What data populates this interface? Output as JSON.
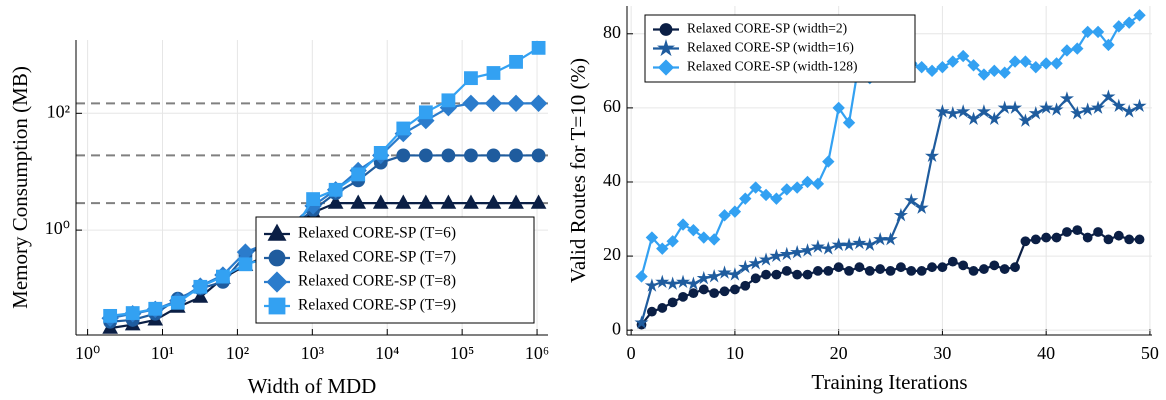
{
  "chart_data": [
    {
      "type": "line",
      "xlabel": "Width of MDD",
      "ylabel": "Memory Consumption (MB)",
      "xscale": "log",
      "yscale": "log",
      "grid": true,
      "legend": "lower right",
      "xlim": [
        0.7,
        1400000
      ],
      "ylim": [
        0.016,
        1800
      ],
      "xticks": [
        {
          "value": 1,
          "label": "10⁰"
        },
        {
          "value": 10,
          "label": "10¹"
        },
        {
          "value": 100,
          "label": "10²"
        },
        {
          "value": 1000,
          "label": "10³"
        },
        {
          "value": 10000,
          "label": "10⁴"
        },
        {
          "value": 100000,
          "label": "10⁵"
        },
        {
          "value": 1000000,
          "label": "10⁶"
        }
      ],
      "yticks": [
        {
          "value": 1,
          "label": "10⁰"
        },
        {
          "value": 100,
          "label": "10²"
        }
      ],
      "hlines": [
        148,
        19,
        2.9
      ],
      "hline_color": "#808080",
      "x": [
        2,
        4,
        8,
        16,
        32,
        64,
        128,
        256,
        512,
        1024,
        2048,
        4096,
        8192,
        16384,
        32768,
        65536,
        131072,
        262144,
        524288,
        1048576
      ],
      "series": [
        {
          "name": "Relaxed CORE-SP (T=6)",
          "color": "#0b1f45",
          "marker": "triangle",
          "values": [
            0.021,
            0.024,
            0.029,
            0.048,
            0.071,
            0.15,
            0.25,
            0.37,
            0.89,
            2.0,
            2.9,
            2.9,
            2.9,
            2.9,
            2.9,
            2.9,
            2.9,
            2.9,
            2.9,
            2.9
          ]
        },
        {
          "name": "Relaxed CORE-SP (T=7)",
          "color": "#1f5c9e",
          "marker": "circle",
          "values": [
            0.027,
            0.029,
            0.037,
            0.067,
            0.1,
            0.13,
            0.37,
            0.6,
            1.1,
            2.2,
            4.3,
            7.1,
            14.3,
            19,
            19,
            19,
            19,
            19,
            19,
            19
          ]
        },
        {
          "name": "Relaxed CORE-SP (T=8)",
          "color": "#2b7ccc",
          "marker": "diamond",
          "values": [
            0.031,
            0.037,
            0.044,
            0.062,
            0.11,
            0.17,
            0.42,
            0.6,
            1.2,
            2.6,
            4.9,
            10.5,
            19,
            45,
            75,
            125,
            148,
            148,
            148,
            148
          ]
        },
        {
          "name": "Relaxed CORE-SP (T=9)",
          "color": "#33a1f2",
          "marker": "square",
          "values": [
            0.034,
            0.038,
            0.045,
            0.057,
            0.107,
            0.16,
            0.26,
            0.33,
            0.82,
            3.4,
            4.9,
            9,
            21,
            55,
            104,
            167,
            400,
            490,
            760,
            1320
          ]
        }
      ]
    },
    {
      "type": "line",
      "xlabel": "Training Iterations",
      "ylabel": "Valid Routes for T=10 (%)",
      "grid": true,
      "legend": "upper left",
      "xlim": [
        -0.4,
        50.2
      ],
      "ylim": [
        -1.3,
        87.5
      ],
      "xticks": [
        0,
        10,
        20,
        30,
        40,
        50
      ],
      "yticks": [
        0,
        20,
        40,
        60,
        80
      ],
      "x": [
        1,
        2,
        3,
        4,
        5,
        6,
        7,
        8,
        9,
        10,
        11,
        12,
        13,
        14,
        15,
        16,
        17,
        18,
        19,
        20,
        21,
        22,
        23,
        24,
        25,
        26,
        27,
        28,
        29,
        30,
        31,
        32,
        33,
        34,
        35,
        36,
        37,
        38,
        39,
        40,
        41,
        42,
        43,
        44,
        45,
        46,
        47,
        48,
        49
      ],
      "series": [
        {
          "name": "Relaxed CORE-SP (width=2)",
          "color": "#0b1f45",
          "marker": "circle",
          "values": [
            1.5,
            5,
            6,
            7.5,
            9,
            10,
            11,
            10,
            10.5,
            11,
            12,
            14,
            15,
            15,
            16,
            15,
            15,
            16,
            16,
            17,
            16,
            17,
            16,
            16.5,
            16,
            17,
            16,
            16,
            17,
            17,
            18.5,
            17.5,
            16,
            16.5,
            17.5,
            16.5,
            17,
            24,
            24.5,
            25,
            25,
            26.5,
            27,
            25,
            26.5,
            24.5,
            25.5,
            24.5,
            24.5
          ]
        },
        {
          "name": "Relaxed CORE-SP (width=16)",
          "color": "#1f5c9e",
          "marker": "star",
          "values": [
            2,
            12,
            13,
            12.5,
            13,
            12.5,
            14,
            14.5,
            15.5,
            15,
            17,
            18,
            19,
            20,
            20.5,
            21,
            21.5,
            22.5,
            22,
            23,
            23,
            23.5,
            23,
            24.5,
            24.5,
            31,
            35,
            33,
            47,
            59,
            58.5,
            59,
            57,
            59,
            57,
            60,
            60,
            56.5,
            58.5,
            60,
            59.5,
            62.5,
            58.5,
            59.5,
            60,
            63,
            60.5,
            59,
            60.5
          ]
        },
        {
          "name": "Relaxed CORE-SP (width-128)",
          "color": "#33a1f2",
          "marker": "diamond",
          "values": [
            14.5,
            25,
            22,
            24,
            28.5,
            27,
            25,
            24.5,
            31,
            32,
            35.5,
            38.5,
            36.5,
            35.5,
            38,
            38.5,
            40,
            39.5,
            45.5,
            60,
            56,
            73,
            68,
            73,
            71,
            73,
            72,
            71,
            70,
            71,
            72.5,
            74,
            71.5,
            69,
            70,
            69.5,
            72.5,
            72.5,
            71,
            72,
            72,
            75.5,
            76,
            80.5,
            80.5,
            77,
            82,
            83,
            85
          ]
        }
      ]
    }
  ]
}
